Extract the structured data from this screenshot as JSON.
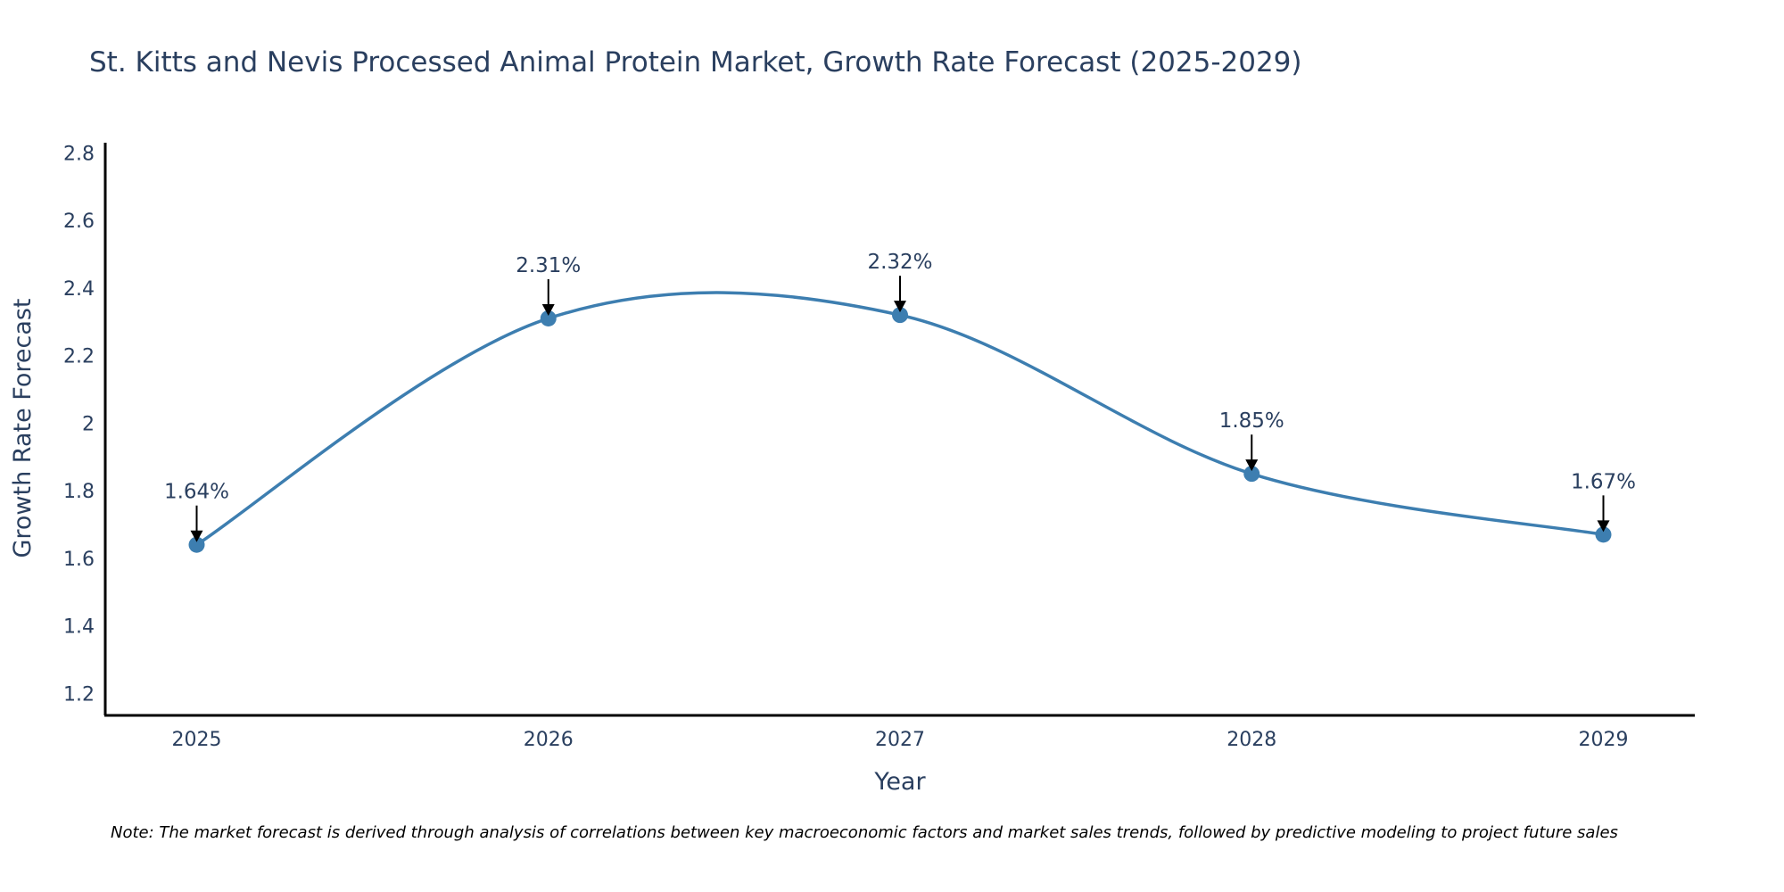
{
  "chart_data": {
    "type": "line",
    "title": "St. Kitts and Nevis Processed Animal Protein Market, Growth Rate Forecast (2025-2029)",
    "xlabel": "Year",
    "ylabel": "Growth Rate Forecast",
    "x": [
      "2025",
      "2026",
      "2027",
      "2028",
      "2029"
    ],
    "series": [
      {
        "name": "Growth Rate Forecast",
        "values": [
          1.64,
          2.31,
          2.32,
          1.85,
          1.67
        ],
        "color": "#3d7eb0",
        "line_shape": "spline",
        "markers": true
      }
    ],
    "annotations": [
      "1.64%",
      "2.31%",
      "2.32%",
      "1.85%",
      "1.67%"
    ],
    "yticks": [
      "1.2",
      "1.4",
      "1.6",
      "1.8",
      "2",
      "2.2",
      "2.4",
      "2.6",
      "2.8"
    ],
    "ytick_values": [
      1.2,
      1.4,
      1.6,
      1.8,
      2.0,
      2.2,
      2.4,
      2.6,
      2.8
    ],
    "ylim": [
      1.135,
      2.83
    ],
    "xlim": [
      2024.74,
      2029.26
    ],
    "grid": false,
    "legend": "none"
  },
  "note": "Note: The market forecast is derived through analysis of correlations between key macroeconomic factors and market sales trends, followed by predictive modeling to project future sales"
}
